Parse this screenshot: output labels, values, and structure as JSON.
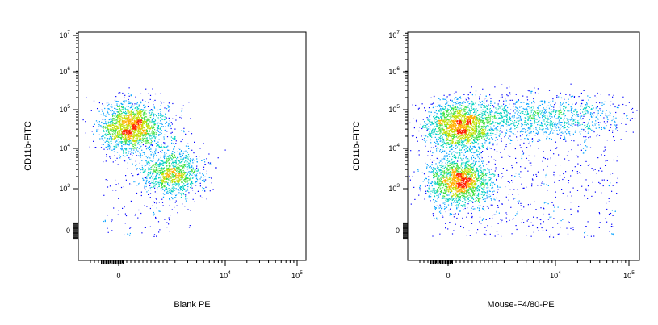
{
  "chart_data": [
    {
      "type": "scatter",
      "subtype": "flow-cytometry-density-dot-plot",
      "title": "",
      "xlabel": "Blank PE",
      "ylabel": "CD11b-FITC",
      "x_ticks": [
        {
          "value": 0,
          "base": "0",
          "exp": ""
        },
        {
          "value": 10000,
          "base": "10",
          "exp": "4"
        },
        {
          "value": 100000,
          "base": "10",
          "exp": "5"
        }
      ],
      "y_ticks": [
        {
          "value": 0,
          "base": "0",
          "exp": ""
        },
        {
          "value": 1000,
          "base": "10",
          "exp": "3"
        },
        {
          "value": 10000,
          "base": "10",
          "exp": "4"
        },
        {
          "value": 100000,
          "base": "10",
          "exp": "5"
        },
        {
          "value": 1000000,
          "base": "10",
          "exp": "6"
        },
        {
          "value": 10000000,
          "base": "10",
          "exp": "7"
        }
      ],
      "xscale": "biexponential",
      "yscale": "biexponential",
      "populations": [
        {
          "name": "",
          "x_center": 700,
          "y_center": 35000,
          "relative_density": "high"
        },
        {
          "name": "",
          "x_center": 1800,
          "y_center": 2500,
          "relative_density": "medium"
        }
      ],
      "grid": false,
      "legend": "none"
    },
    {
      "type": "scatter",
      "subtype": "flow-cytometry-density-dot-plot",
      "title": "",
      "xlabel": "Mouse-F4/80-PE",
      "ylabel": "CD11b-FITC",
      "x_ticks": [
        {
          "value": 0,
          "base": "0",
          "exp": ""
        },
        {
          "value": 10000,
          "base": "10",
          "exp": "4"
        },
        {
          "value": 100000,
          "base": "10",
          "exp": "5"
        }
      ],
      "y_ticks": [
        {
          "value": 0,
          "base": "0",
          "exp": ""
        },
        {
          "value": 1000,
          "base": "10",
          "exp": "3"
        },
        {
          "value": 10000,
          "base": "10",
          "exp": "4"
        },
        {
          "value": 100000,
          "base": "10",
          "exp": "5"
        },
        {
          "value": 1000000,
          "base": "10",
          "exp": "6"
        },
        {
          "value": 10000000,
          "base": "10",
          "exp": "7"
        }
      ],
      "xscale": "biexponential",
      "yscale": "biexponential",
      "populations": [
        {
          "name": "",
          "x_center": 600,
          "y_center": 35000,
          "relative_density": "high"
        },
        {
          "name": "",
          "x_center": 5000,
          "y_center": 60000,
          "relative_density": "medium"
        },
        {
          "name": "",
          "x_center": 600,
          "y_center": 1500,
          "relative_density": "high"
        }
      ],
      "grid": false,
      "legend": "none"
    }
  ],
  "colors": {
    "density_scale": [
      "#0000ff",
      "#00a0ff",
      "#00d0c0",
      "#40e040",
      "#c0e000",
      "#ffb000",
      "#ff2000"
    ],
    "axis": "#000000",
    "background": "#ffffff"
  }
}
